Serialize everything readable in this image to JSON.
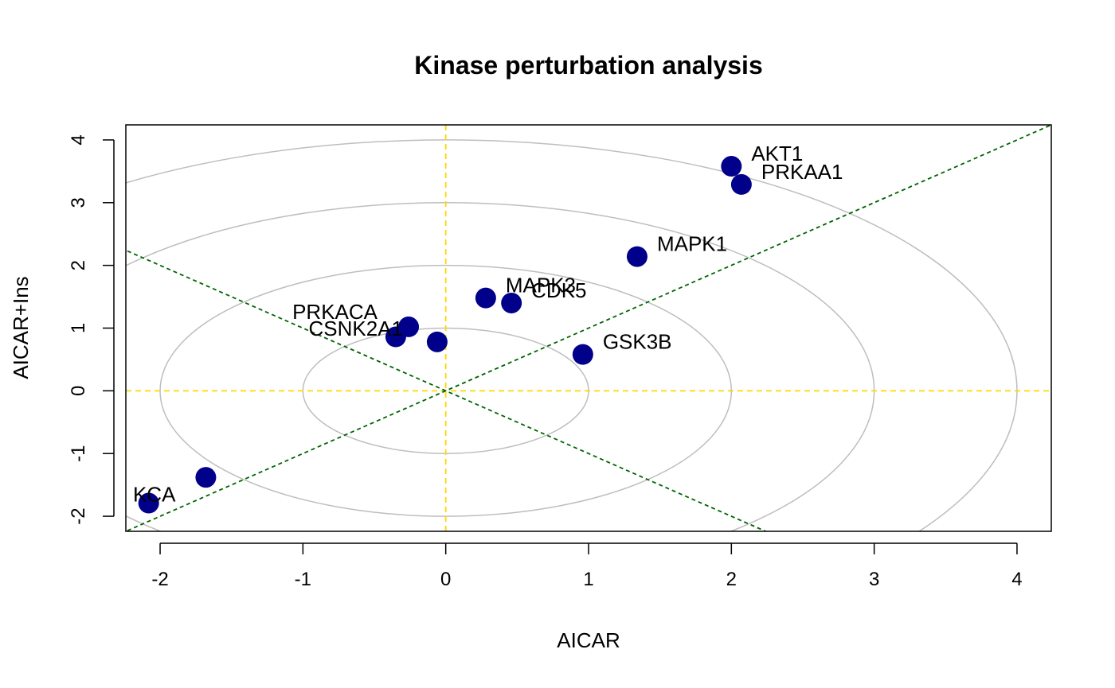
{
  "chart_data": {
    "type": "scatter",
    "title": "Kinase perturbation analysis",
    "xlabel": "AICAR",
    "ylabel": "AICAR+Ins",
    "xlim": [
      -2.24,
      4.24
    ],
    "ylim": [
      -2.24,
      4.24
    ],
    "x_ticks": [
      -2,
      -1,
      0,
      1,
      2,
      3,
      4
    ],
    "y_ticks": [
      -2,
      -1,
      0,
      1,
      2,
      3,
      4
    ],
    "x_tick_labels": [
      "-2",
      "-1",
      "0",
      "1",
      "2",
      "3",
      "4"
    ],
    "y_tick_labels": [
      "-2",
      "-1",
      "0",
      "1",
      "2",
      "3",
      "4"
    ],
    "point_color": "#00008B",
    "circle_color": "#BEBEBE",
    "zero_line_color": "#FFD700",
    "diagonal_color": "#006400",
    "circle_radii": [
      1,
      2,
      3,
      4
    ],
    "zero_lines": true,
    "diagonal_slopes": [
      1,
      -1
    ],
    "points": [
      {
        "label": "AKT1",
        "x": 2.0,
        "y": 3.58
      },
      {
        "label": "PRKAA1",
        "x": 2.07,
        "y": 3.29
      },
      {
        "label": "MAPK1",
        "x": 1.34,
        "y": 2.14
      },
      {
        "label": "MAPK3",
        "x": 0.28,
        "y": 1.48
      },
      {
        "label": "CDK5",
        "x": 0.46,
        "y": 1.4
      },
      {
        "label": "GSK3B",
        "x": 0.96,
        "y": 0.58
      },
      {
        "label": "PRKACA",
        "x": -0.26,
        "y": 1.02
      },
      {
        "label": "CSNK2A1",
        "x": -0.35,
        "y": 0.86
      },
      {
        "label": "",
        "x": -0.06,
        "y": 0.78
      },
      {
        "label": "",
        "x": -1.68,
        "y": -1.38
      },
      {
        "label": "KCA",
        "x": -2.08,
        "y": -1.79
      }
    ]
  }
}
